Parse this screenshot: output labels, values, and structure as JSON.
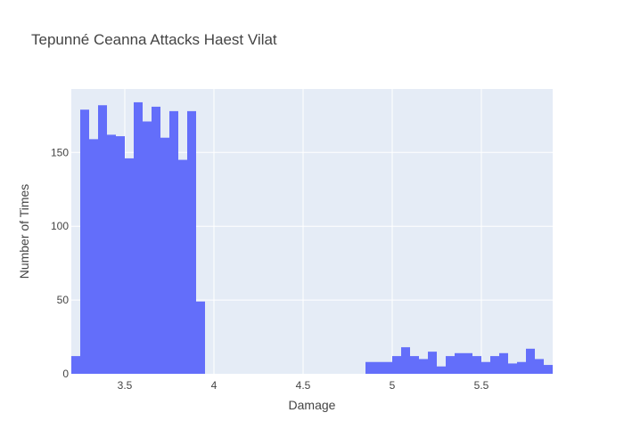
{
  "chart_data": {
    "type": "bar",
    "subtype": "histogram",
    "title": "Tepunné Ceanna Attacks Haest Vilat",
    "xlabel": "Damage",
    "ylabel": "Number of Times",
    "xlim": [
      3.2,
      5.9
    ],
    "ylim": [
      0,
      193
    ],
    "bin_width": 0.05,
    "x_ticks": [
      3.5,
      4,
      4.5,
      5,
      5.5
    ],
    "x_tick_labels": [
      "3.5",
      "4",
      "4.5",
      "5",
      "5.5"
    ],
    "y_ticks": [
      0,
      50,
      100,
      150
    ],
    "y_tick_labels": [
      "0",
      "50",
      "100",
      "150"
    ],
    "grid": true,
    "legend": "none",
    "colors": {
      "bar": "#636efa",
      "plot_bg": "#e5ecf6",
      "grid": "#ffffff",
      "text": "#444444"
    },
    "bin_starts": [
      3.2,
      3.25,
      3.3,
      3.35,
      3.4,
      3.45,
      3.5,
      3.55,
      3.6,
      3.65,
      3.7,
      3.75,
      3.8,
      3.85,
      3.9,
      3.95,
      4.0,
      4.05,
      4.1,
      4.15,
      4.2,
      4.25,
      4.3,
      4.35,
      4.4,
      4.45,
      4.5,
      4.55,
      4.6,
      4.65,
      4.7,
      4.75,
      4.8,
      4.85,
      4.9,
      4.95,
      5.0,
      5.05,
      5.1,
      5.15,
      5.2,
      5.25,
      5.3,
      5.35,
      5.4,
      5.45,
      5.5,
      5.55,
      5.6,
      5.65,
      5.7,
      5.75,
      5.8,
      5.85
    ],
    "values": [
      12,
      179,
      159,
      182,
      162,
      161,
      146,
      184,
      171,
      181,
      160,
      178,
      145,
      178,
      49,
      0,
      0,
      0,
      0,
      0,
      0,
      0,
      0,
      0,
      0,
      0,
      0,
      0,
      0,
      0,
      0,
      0,
      0,
      8,
      8,
      8,
      12,
      18,
      12,
      10,
      15,
      5,
      12,
      14,
      14,
      12,
      8,
      12,
      14,
      7,
      8,
      17,
      10,
      6
    ]
  }
}
